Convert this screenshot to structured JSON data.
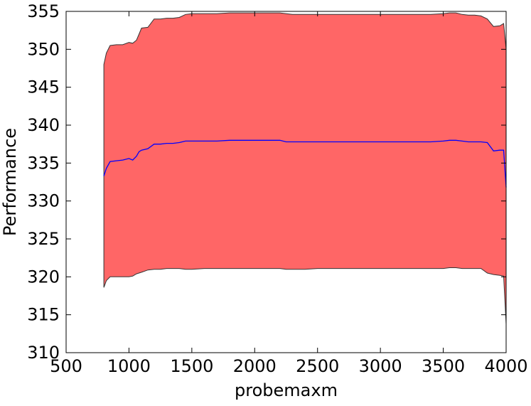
{
  "chart_data": {
    "type": "area",
    "title": "",
    "xlabel": "probemaxm",
    "ylabel": "Performance",
    "xlim": [
      500,
      4000
    ],
    "ylim": [
      310,
      355
    ],
    "xticks": [
      500,
      1000,
      1500,
      2000,
      2500,
      3000,
      3500,
      4000
    ],
    "yticks": [
      310,
      315,
      320,
      325,
      330,
      335,
      340,
      345,
      350,
      355
    ],
    "grid": false,
    "legend": "none",
    "colors": {
      "band_fill": "#ff6666",
      "band_edge": "#333333",
      "mean_line": "#0000ff",
      "axes": "#000000"
    },
    "series": [
      {
        "role": "band",
        "x": [
          800,
          820,
          850,
          900,
          950,
          1000,
          1030,
          1060,
          1080,
          1100,
          1150,
          1200,
          1250,
          1300,
          1350,
          1400,
          1450,
          1500,
          1600,
          1700,
          1800,
          1900,
          2000,
          2100,
          2200,
          2250,
          2300,
          2400,
          2500,
          2600,
          2700,
          2800,
          2900,
          3000,
          3100,
          3200,
          3300,
          3400,
          3500,
          3550,
          3600,
          3650,
          3700,
          3750,
          3800,
          3850,
          3900,
          3950,
          3980,
          4000
        ],
        "upper": [
          348.0,
          349.5,
          350.5,
          350.6,
          350.6,
          350.9,
          350.8,
          351.2,
          352.0,
          352.8,
          352.9,
          354.0,
          354.0,
          354.1,
          354.1,
          354.2,
          354.6,
          354.7,
          354.7,
          354.7,
          354.8,
          354.8,
          354.8,
          354.8,
          354.8,
          354.7,
          354.6,
          354.6,
          354.6,
          354.6,
          354.6,
          354.6,
          354.6,
          354.6,
          354.6,
          354.6,
          354.6,
          354.6,
          354.7,
          354.8,
          354.8,
          354.6,
          354.5,
          354.5,
          354.4,
          354.0,
          353.0,
          353.1,
          353.4,
          350.0
        ],
        "lower": [
          318.6,
          319.5,
          320.0,
          320.0,
          320.0,
          320.0,
          320.1,
          320.4,
          320.5,
          320.6,
          320.9,
          321.0,
          321.0,
          321.1,
          321.1,
          321.1,
          321.0,
          321.0,
          321.1,
          321.1,
          321.1,
          321.1,
          321.1,
          321.1,
          321.1,
          321.0,
          321.0,
          321.0,
          321.1,
          321.1,
          321.1,
          321.1,
          321.1,
          321.1,
          321.1,
          321.1,
          321.1,
          321.1,
          321.1,
          321.2,
          321.2,
          321.1,
          321.1,
          321.1,
          321.1,
          320.5,
          320.3,
          320.2,
          320.1,
          313.8
        ]
      },
      {
        "role": "mean",
        "x": [
          800,
          820,
          850,
          900,
          950,
          1000,
          1030,
          1060,
          1080,
          1100,
          1150,
          1200,
          1250,
          1300,
          1350,
          1400,
          1450,
          1500,
          1600,
          1700,
          1800,
          1900,
          2000,
          2100,
          2200,
          2250,
          2300,
          2400,
          2500,
          2600,
          2700,
          2800,
          2900,
          3000,
          3100,
          3200,
          3300,
          3400,
          3500,
          3550,
          3600,
          3650,
          3700,
          3750,
          3800,
          3850,
          3900,
          3950,
          3980,
          4000
        ],
        "values": [
          333.3,
          334.3,
          335.2,
          335.3,
          335.4,
          335.6,
          335.4,
          335.9,
          336.5,
          336.7,
          336.9,
          337.5,
          337.5,
          337.6,
          337.6,
          337.7,
          337.9,
          337.9,
          337.9,
          337.9,
          338.0,
          338.0,
          338.0,
          338.0,
          338.0,
          337.8,
          337.8,
          337.8,
          337.8,
          337.8,
          337.8,
          337.8,
          337.8,
          337.8,
          337.8,
          337.8,
          337.8,
          337.8,
          337.9,
          338.0,
          338.0,
          337.9,
          337.8,
          337.8,
          337.8,
          337.7,
          336.6,
          336.7,
          336.7,
          331.8
        ]
      }
    ]
  }
}
